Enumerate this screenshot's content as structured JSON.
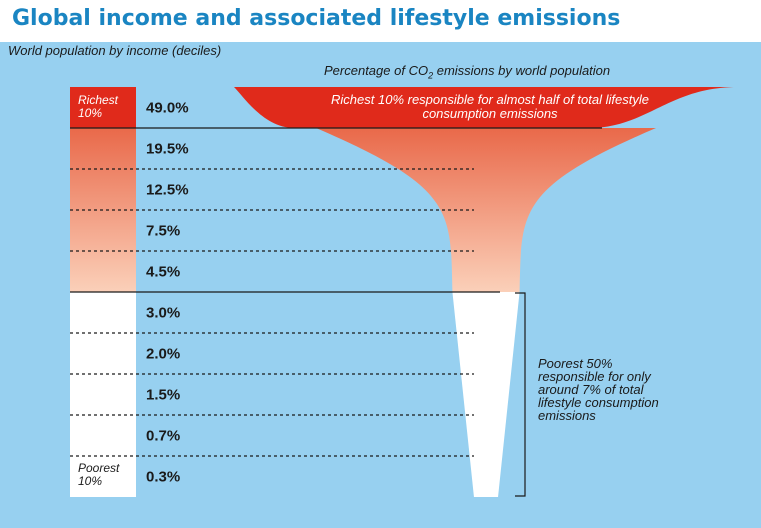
{
  "chart_data": {
    "type": "bar",
    "title": "Global income and associated lifestyle emissions",
    "ylabel": "World population by income (deciles)",
    "xlabel_prefix": "Percentage of",
    "xlabel_co2": "CO",
    "xlabel_sub": "2",
    "xlabel_suffix": "emissions by world population",
    "categories": [
      "Richest 10%",
      "",
      "",
      "",
      "",
      "",
      "",
      "",
      "",
      "Poorest 10%"
    ],
    "values": [
      49.0,
      19.5,
      12.5,
      7.5,
      4.5,
      3.0,
      2.0,
      1.5,
      0.7,
      0.3
    ],
    "value_labels": [
      "49.0%",
      "19.5%",
      "12.5%",
      "7.5%",
      "4.5%",
      "3.0%",
      "2.0%",
      "1.5%",
      "0.7%",
      "0.3%"
    ],
    "annotations": {
      "richest_label": [
        "Richest",
        "10%"
      ],
      "poorest_label": [
        "Poorest",
        "10%"
      ],
      "richest_note": [
        "Richest 10% responsible for almost half of total lifestyle",
        "consumption emissions"
      ],
      "poorest_note": [
        "Poorest 50%",
        "responsible for only",
        "around 7% of total",
        "lifestyle consumption",
        "emissions"
      ]
    },
    "colors": {
      "background": "#97d0f0",
      "richest": "#e02a1b",
      "gradient_top": "#e9694a",
      "gradient_bottom": "#fbd0b9",
      "poorest": "#ffffff",
      "title": "#1a85c2"
    }
  }
}
